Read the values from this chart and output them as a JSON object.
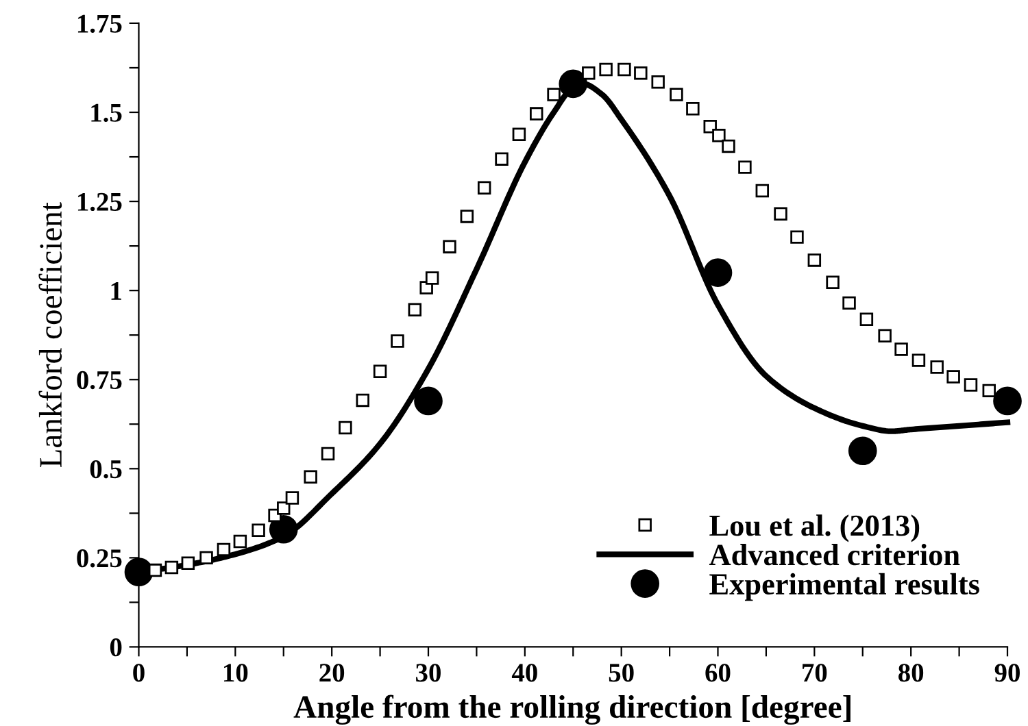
{
  "chart_data": {
    "type": "line",
    "xlabel": "Angle from the rolling direction [degree]",
    "ylabel": "Lankford coefficient",
    "xlim": [
      0,
      90
    ],
    "ylim": [
      0,
      1.75
    ],
    "xticks": [
      0,
      {
        "value": 5,
        "label": null
      },
      10,
      {
        "value": 15,
        "label": null
      },
      20,
      {
        "value": 25,
        "label": null
      },
      30,
      {
        "value": 35,
        "label": null
      },
      40,
      {
        "value": 45,
        "label": null
      },
      50,
      {
        "value": 55,
        "label": null
      },
      60,
      {
        "value": 65,
        "label": null
      },
      70,
      {
        "value": 75,
        "label": null
      },
      80,
      {
        "value": 85,
        "label": null
      },
      90
    ],
    "yticks": [
      0,
      {
        "value": 0.125,
        "label": null
      },
      0.25,
      {
        "value": 0.375,
        "label": null
      },
      0.5,
      {
        "value": 0.625,
        "label": null
      },
      0.75,
      {
        "value": 0.875,
        "label": null
      },
      1,
      {
        "value": 1.125,
        "label": null
      },
      1.25,
      {
        "value": 1.375,
        "label": null
      },
      1.5,
      {
        "value": 1.625,
        "label": null
      },
      1.75
    ],
    "grid": false,
    "legend": "bottom right",
    "series": [
      {
        "name": "Lou et al. (2013)",
        "type": "scatter",
        "marker": "square",
        "color": "#000000",
        "x": [
          1.7,
          3.4,
          5.1,
          7.0,
          8.8,
          10.5,
          12.4,
          14.1,
          15.0,
          15.9,
          17.8,
          19.6,
          21.4,
          23.2,
          25.0,
          26.8,
          28.6,
          29.8,
          30.4,
          32.2,
          34.0,
          35.8,
          37.6,
          39.4,
          41.2,
          43.0,
          46.6,
          48.4,
          50.3,
          52.0,
          53.8,
          55.7,
          57.4,
          59.2,
          60.1,
          61.1,
          62.8,
          64.6,
          66.5,
          68.2,
          70.0,
          71.9,
          73.6,
          75.4,
          77.3,
          79.0,
          80.8,
          82.7,
          84.4,
          86.2,
          88.1
        ],
        "values": [
          0.215,
          0.223,
          0.235,
          0.25,
          0.273,
          0.296,
          0.327,
          0.369,
          0.389,
          0.418,
          0.477,
          0.542,
          0.615,
          0.692,
          0.773,
          0.858,
          0.946,
          1.008,
          1.035,
          1.123,
          1.208,
          1.288,
          1.369,
          1.438,
          1.496,
          1.55,
          1.61,
          1.62,
          1.62,
          1.61,
          1.585,
          1.55,
          1.51,
          1.46,
          1.435,
          1.405,
          1.346,
          1.28,
          1.215,
          1.15,
          1.085,
          1.023,
          0.965,
          0.919,
          0.873,
          0.835,
          0.804,
          0.785,
          0.758,
          0.735,
          0.719
        ]
      },
      {
        "name": "Advanced criterion",
        "marker": "none",
        "line_style": "solid",
        "color": "#000000",
        "x": [
          0,
          5,
          10,
          15,
          20,
          25,
          30,
          35,
          40,
          43,
          45,
          46,
          48,
          50,
          55,
          60,
          65,
          70,
          75,
          78,
          80,
          85,
          90
        ],
        "values": [
          0.21,
          0.23,
          0.26,
          0.31,
          0.43,
          0.57,
          0.78,
          1.06,
          1.36,
          1.5,
          1.57,
          1.58,
          1.55,
          1.48,
          1.265,
          0.96,
          0.76,
          0.67,
          0.62,
          0.605,
          0.61,
          0.62,
          0.63
        ]
      },
      {
        "name": "Experimental results",
        "type": "scatter",
        "marker": "circle",
        "color": "#000000",
        "x": [
          0,
          15,
          30,
          45,
          60,
          75,
          90
        ],
        "values": [
          0.21,
          0.33,
          0.69,
          1.58,
          1.05,
          0.55,
          0.69
        ]
      }
    ]
  }
}
